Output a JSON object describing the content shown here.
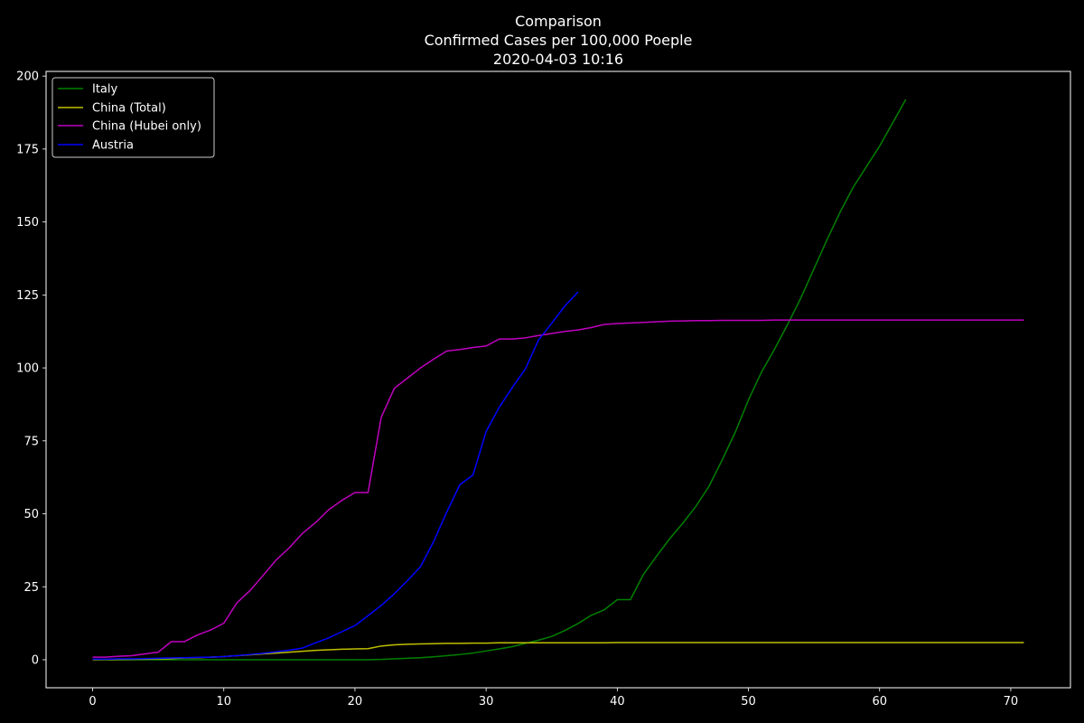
{
  "chart_data": {
    "type": "line",
    "title_lines": [
      "Comparison",
      "Confirmed Cases per 100,000 Poeple",
      "2020-04-03 10:16"
    ],
    "xlabel": "",
    "ylabel": "",
    "xlim": [
      -3.55,
      74.55
    ],
    "ylim": [
      -9.6,
      201.6
    ],
    "xticks": [
      0,
      10,
      20,
      30,
      40,
      50,
      60,
      70
    ],
    "yticks": [
      0,
      25,
      50,
      75,
      100,
      125,
      150,
      175,
      200
    ],
    "grid": false,
    "legend_position": "top-left",
    "background": "#000000",
    "series": [
      {
        "name": "Italy",
        "color": "#008000",
        "x": [
          0,
          1,
          2,
          3,
          4,
          5,
          6,
          7,
          8,
          9,
          10,
          11,
          12,
          13,
          14,
          15,
          16,
          17,
          18,
          19,
          20,
          21,
          22,
          23,
          24,
          25,
          26,
          27,
          28,
          29,
          30,
          31,
          32,
          33,
          34,
          35,
          36,
          37,
          38,
          39,
          40,
          41,
          42,
          43,
          44,
          45,
          46,
          47,
          48,
          49,
          50,
          51,
          52,
          53,
          54,
          55,
          56,
          57,
          58,
          59,
          60,
          61,
          62
        ],
        "y": [
          0.01,
          0.01,
          0.01,
          0.01,
          0.01,
          0.01,
          0.01,
          0.01,
          0.01,
          0.01,
          0.01,
          0.01,
          0.01,
          0.01,
          0.01,
          0.01,
          0.01,
          0.01,
          0.01,
          0.01,
          0.01,
          0.01,
          0.1,
          0.3,
          0.5,
          0.7,
          1.0,
          1.4,
          1.8,
          2.3,
          3.0,
          3.7,
          4.5,
          5.6,
          6.7,
          8.0,
          10.0,
          12.4,
          15.2,
          17.1,
          20.6,
          20.6,
          29.3,
          35.5,
          41.5,
          46.8,
          52.6,
          59.5,
          68.5,
          78.0,
          89.0,
          98.6,
          106.5,
          115.0,
          124.0,
          134.0,
          144.0,
          153.5,
          162.0,
          169.0,
          176.0,
          184.0,
          192.0
        ]
      },
      {
        "name": "China (Total)",
        "color": "#bfbf00",
        "x": [
          0,
          1,
          2,
          3,
          4,
          5,
          6,
          7,
          8,
          9,
          10,
          11,
          12,
          13,
          14,
          15,
          16,
          17,
          18,
          19,
          20,
          21,
          22,
          23,
          24,
          25,
          26,
          27,
          28,
          29,
          30,
          31,
          32,
          33,
          34,
          35,
          36,
          37,
          38,
          39,
          40,
          41,
          42,
          43,
          44,
          45,
          46,
          47,
          48,
          49,
          50,
          51,
          52,
          53,
          54,
          55,
          56,
          57,
          58,
          59,
          60,
          61,
          62,
          63,
          64,
          65,
          66,
          67,
          68,
          69,
          70,
          71
        ],
        "y": [
          0.04,
          0.06,
          0.1,
          0.14,
          0.2,
          0.3,
          0.4,
          0.6,
          0.7,
          0.9,
          1.1,
          1.4,
          1.7,
          2.0,
          2.3,
          2.6,
          2.9,
          3.2,
          3.4,
          3.6,
          3.7,
          3.8,
          4.7,
          5.1,
          5.3,
          5.4,
          5.5,
          5.6,
          5.6,
          5.7,
          5.7,
          5.8,
          5.8,
          5.8,
          5.8,
          5.8,
          5.8,
          5.8,
          5.8,
          5.8,
          5.9,
          5.9,
          5.9,
          5.9,
          5.9,
          5.9,
          5.9,
          5.9,
          5.9,
          5.9,
          5.9,
          5.9,
          5.9,
          5.9,
          5.9,
          5.9,
          5.9,
          5.9,
          5.9,
          5.9,
          5.9,
          5.9,
          5.9,
          5.9,
          5.9,
          5.9,
          5.9,
          5.9,
          5.9,
          5.9,
          5.9,
          5.9
        ]
      },
      {
        "name": "China (Hubei only)",
        "color": "#bf00bf",
        "x": [
          0,
          1,
          2,
          3,
          4,
          5,
          6,
          7,
          8,
          9,
          10,
          11,
          12,
          13,
          14,
          15,
          16,
          17,
          18,
          19,
          20,
          21,
          22,
          23,
          24,
          25,
          26,
          27,
          28,
          29,
          30,
          31,
          32,
          33,
          34,
          35,
          36,
          37,
          38,
          39,
          40,
          41,
          42,
          43,
          44,
          45,
          46,
          47,
          48,
          49,
          50,
          51,
          52,
          53,
          54,
          55,
          56,
          57,
          58,
          59,
          60,
          61,
          62,
          63,
          64,
          65,
          66,
          67,
          68,
          69,
          70,
          71
        ],
        "y": [
          0.9,
          0.9,
          1.2,
          1.4,
          2.0,
          2.6,
          6.2,
          6.2,
          8.5,
          10.2,
          12.5,
          19.5,
          23.7,
          28.9,
          34.2,
          38.4,
          43.3,
          47.0,
          51.4,
          54.6,
          57.3,
          57.3,
          83.0,
          93.0,
          96.5,
          100.0,
          103.0,
          105.8,
          106.3,
          107.0,
          107.5,
          109.9,
          109.9,
          110.3,
          111.1,
          111.8,
          112.5,
          113.0,
          113.8,
          114.9,
          115.2,
          115.4,
          115.6,
          115.8,
          116.0,
          116.1,
          116.2,
          116.2,
          116.3,
          116.3,
          116.3,
          116.3,
          116.4,
          116.4,
          116.4,
          116.4,
          116.4,
          116.4,
          116.4,
          116.4,
          116.4,
          116.4,
          116.4,
          116.4,
          116.4,
          116.4,
          116.4,
          116.4,
          116.4,
          116.4,
          116.4,
          116.4
        ]
      },
      {
        "name": "Austria",
        "color": "#0000ff",
        "x": [
          0,
          1,
          2,
          3,
          4,
          5,
          6,
          7,
          8,
          9,
          10,
          11,
          12,
          13,
          14,
          15,
          16,
          17,
          18,
          19,
          20,
          21,
          22,
          23,
          24,
          25,
          26,
          27,
          28,
          29,
          30,
          31,
          32,
          33,
          34,
          35,
          36,
          37
        ],
        "y": [
          0.2,
          0.2,
          0.3,
          0.3,
          0.4,
          0.5,
          0.6,
          0.7,
          0.8,
          0.9,
          1.1,
          1.4,
          1.8,
          2.2,
          2.7,
          3.3,
          4.0,
          5.8,
          7.5,
          9.6,
          11.7,
          15.1,
          18.6,
          22.6,
          27.1,
          31.9,
          40.5,
          50.6,
          60.0,
          63.3,
          78.2,
          86.5,
          93.3,
          99.7,
          109.6,
          115.3,
          121.2,
          126.0
        ]
      }
    ]
  }
}
